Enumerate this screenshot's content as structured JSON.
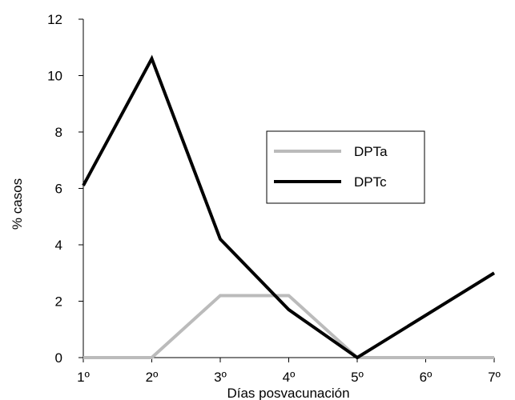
{
  "chart_data": {
    "type": "line",
    "title": "",
    "xlabel": "Días posvacunación",
    "ylabel": "% casos",
    "categories": [
      "1º",
      "2º",
      "3º",
      "4º",
      "5º",
      "6º",
      "7º"
    ],
    "yticks": [
      "0",
      "2",
      "4",
      "6",
      "8",
      "10",
      "12"
    ],
    "ylim": [
      0,
      12
    ],
    "grid": false,
    "legend_position": "center-right",
    "series": [
      {
        "name": "DPTa",
        "color": "#bbbbbb",
        "values": [
          0,
          0,
          2.2,
          2.2,
          0,
          0,
          0
        ]
      },
      {
        "name": "DPTc",
        "color": "#000000",
        "values": [
          6.1,
          10.6,
          4.2,
          1.7,
          0,
          1.5,
          3.0
        ]
      }
    ]
  }
}
